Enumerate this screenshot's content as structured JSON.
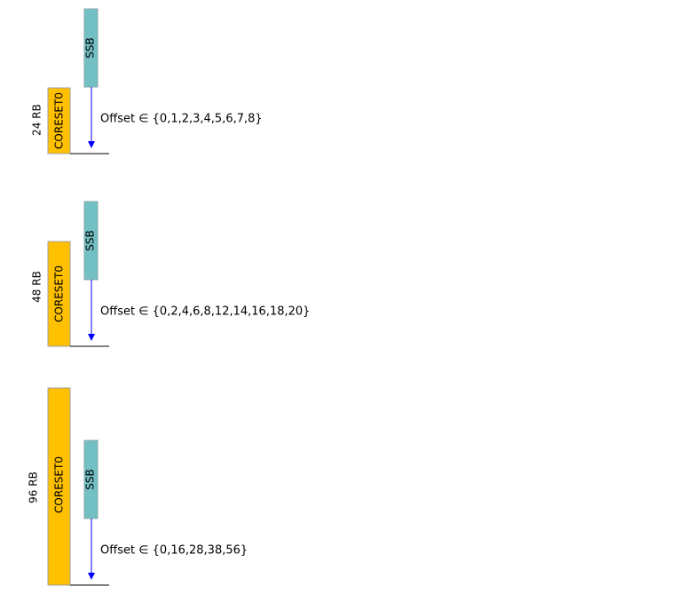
{
  "colors": {
    "coreset": "#ffc000",
    "ssb": "#72bfc4",
    "arrow": "#0000ff",
    "baseline": "#000000"
  },
  "panels": [
    {
      "rb_label": "24 RB",
      "coreset_label": "CORESET0",
      "ssb_label": "SSB",
      "offset_label": "Offset ∈ {0,1,2,3,4,5,6,7,8}"
    },
    {
      "rb_label": "48 RB",
      "coreset_label": "CORESET0",
      "ssb_label": "SSB",
      "offset_label": "Offset ∈ {0,2,4,6,8,12,14,16,18,20}"
    },
    {
      "rb_label": "96 RB",
      "coreset_label": "CORESET0",
      "ssb_label": "SSB",
      "offset_label": "Offset ∈ {0,16,28,38,56}"
    }
  ]
}
